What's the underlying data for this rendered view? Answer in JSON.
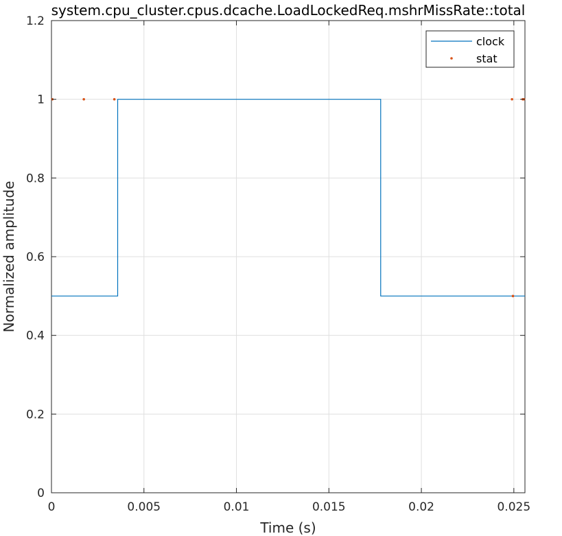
{
  "chart_data": {
    "type": "line",
    "title": "system.cpu_cluster.cpus.dcache.LoadLockedReq.mshrMissRate::total",
    "xlabel": "Time (s)",
    "ylabel": "Normalized amplitude",
    "xlim": [
      0,
      0.0256
    ],
    "ylim": [
      0,
      1.2
    ],
    "xticks": [
      0,
      0.005,
      0.01,
      0.015,
      0.02,
      0.025
    ],
    "xtick_labels": [
      "0",
      "0.005",
      "0.01",
      "0.015",
      "0.02",
      "0.025"
    ],
    "yticks": [
      0,
      0.2,
      0.4,
      0.6,
      0.8,
      1.0,
      1.2
    ],
    "ytick_labels": [
      "0",
      "0.2",
      "0.4",
      "0.6",
      "0.8",
      "1",
      "1.2"
    ],
    "grid": true,
    "legend_position": "top-right",
    "series": [
      {
        "name": "clock",
        "style": "line",
        "color": "#0072BD",
        "x": [
          0,
          0.00358,
          0.00358,
          0.0178,
          0.0178,
          0.0256
        ],
        "y": [
          0.5,
          0.5,
          1.0,
          1.0,
          0.5,
          0.5
        ]
      },
      {
        "name": "stat",
        "style": "markers",
        "color": "#D95319",
        "x": [
          5e-05,
          0.00175,
          0.0034,
          0.0249,
          0.02495,
          0.02548,
          0.02555
        ],
        "y": [
          1.0,
          1.0,
          1.0,
          1.0,
          0.5,
          1.0,
          1.0
        ]
      }
    ]
  }
}
